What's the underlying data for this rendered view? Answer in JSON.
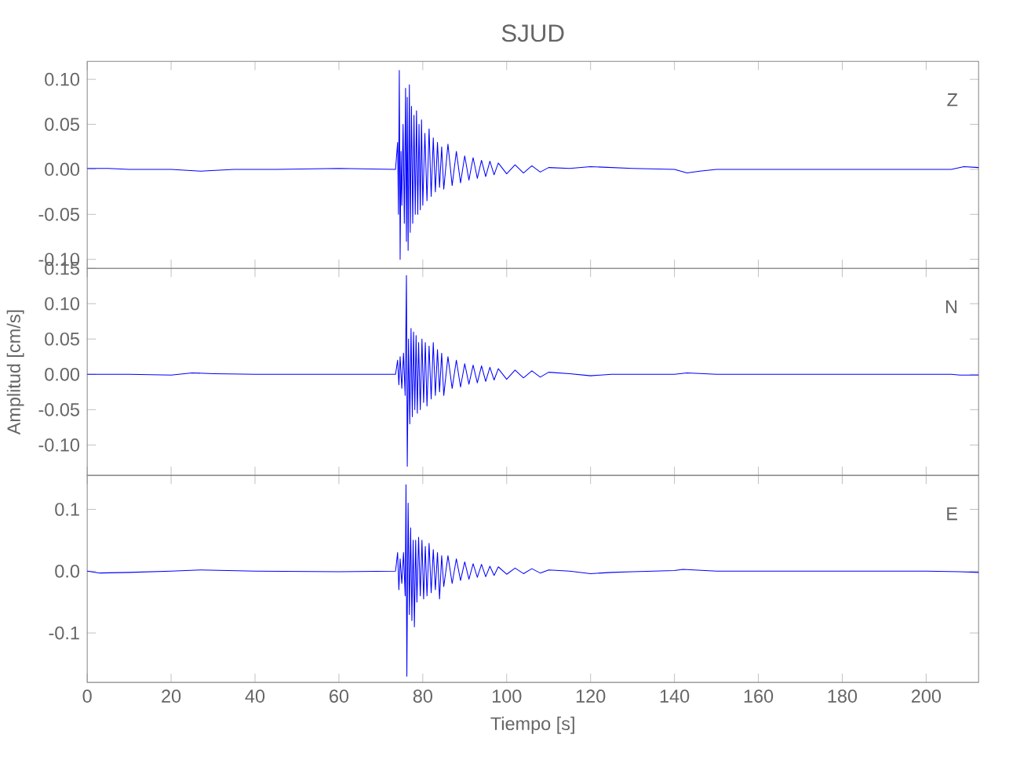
{
  "chart_data": [
    {
      "type": "line",
      "title": "SJUD",
      "annotations": [
        "Z"
      ],
      "color": "#0000ff",
      "tick_labels": "y",
      "xlim": [
        0,
        212.5
      ],
      "ylim": [
        -0.11,
        0.12
      ],
      "xticks": [
        0,
        20,
        40,
        60,
        80,
        100,
        120,
        140,
        160,
        180,
        200
      ],
      "yticks": [
        {
          "value": -0.1,
          "label": "-0.10"
        },
        {
          "value": -0.05,
          "label": "-0.05"
        },
        {
          "value": 0,
          "label": "0.00"
        },
        {
          "value": 0.05,
          "label": "0.05"
        },
        {
          "value": 0.1,
          "label": "0.10"
        }
      ],
      "x": [
        0,
        5,
        10,
        20,
        27,
        35,
        45,
        60,
        73.5,
        74,
        74.2,
        74.4,
        74.6,
        74.8,
        75,
        75.3,
        75.6,
        75.9,
        76.1,
        76.3,
        76.5,
        76.8,
        77,
        77.3,
        77.6,
        77.9,
        78.2,
        78.5,
        78.8,
        79.1,
        79.4,
        79.7,
        80,
        80.5,
        81,
        81.5,
        82,
        82.5,
        83,
        83.5,
        84,
        84.5,
        85,
        86,
        87,
        88,
        89,
        90,
        91,
        92,
        93,
        94,
        95,
        96,
        97,
        98,
        100,
        102,
        104,
        106,
        108,
        110,
        115,
        120,
        125,
        130,
        140,
        143,
        146,
        150,
        160,
        180,
        200,
        206,
        209,
        212.5
      ],
      "values": [
        0.001,
        0.001,
        0.0,
        0.0,
        -0.002,
        0.0,
        0.0,
        0.001,
        0.0,
        0.03,
        -0.05,
        0.11,
        -0.1,
        0.02,
        -0.04,
        0.05,
        -0.06,
        0.09,
        -0.08,
        0.08,
        -0.09,
        0.094,
        -0.07,
        0.07,
        -0.06,
        0.06,
        -0.05,
        0.065,
        -0.05,
        0.05,
        -0.045,
        0.055,
        -0.04,
        0.04,
        -0.035,
        0.045,
        -0.03,
        0.035,
        -0.025,
        0.03,
        -0.02,
        0.025,
        -0.022,
        0.028,
        -0.018,
        0.02,
        -0.015,
        0.015,
        -0.012,
        0.013,
        -0.01,
        0.01,
        -0.008,
        0.009,
        -0.006,
        0.007,
        -0.005,
        0.005,
        -0.004,
        0.004,
        -0.003,
        0.002,
        0.001,
        0.003,
        0.002,
        0.001,
        0.0,
        -0.004,
        -0.002,
        0.0,
        0.0,
        0.0,
        0.0,
        0.0,
        0.003,
        0.002
      ]
    },
    {
      "type": "line",
      "ylabel": "Amplitud  [cm/s]",
      "annotations": [
        "N"
      ],
      "color": "#0000ff",
      "tick_labels": "y",
      "xlim": [
        0,
        212.5
      ],
      "ylim": [
        -0.143,
        0.15
      ],
      "xticks": [
        0,
        20,
        40,
        60,
        80,
        100,
        120,
        140,
        160,
        180,
        200
      ],
      "yticks": [
        {
          "value": -0.1,
          "label": "-0.10"
        },
        {
          "value": -0.05,
          "label": "-0.05"
        },
        {
          "value": 0,
          "label": "0.00"
        },
        {
          "value": 0.05,
          "label": "0.05"
        },
        {
          "value": 0.1,
          "label": "0.10"
        },
        {
          "value": 0.15,
          "label": "0.15"
        }
      ],
      "x": [
        0,
        10,
        20,
        25,
        30,
        40,
        60,
        73.5,
        74,
        74.3,
        74.6,
        75,
        75.4,
        75.8,
        76.1,
        76.3,
        76.6,
        76.9,
        77.2,
        77.5,
        77.8,
        78.1,
        78.4,
        78.7,
        79,
        79.4,
        79.8,
        80.2,
        80.6,
        81,
        81.5,
        82,
        82.5,
        83,
        83.5,
        84,
        84.5,
        85,
        86,
        87,
        88,
        89,
        90,
        91,
        92,
        93,
        94,
        95,
        96,
        97,
        98,
        100,
        102,
        104,
        106,
        108,
        110,
        115,
        120,
        125,
        130,
        140,
        143,
        150,
        170,
        200,
        206,
        208,
        212.5
      ],
      "values": [
        0.0,
        0.0,
        -0.001,
        0.002,
        0.001,
        0.0,
        0.0,
        0.0,
        0.02,
        -0.015,
        0.025,
        -0.02,
        0.03,
        -0.03,
        0.14,
        -0.13,
        0.05,
        -0.07,
        0.065,
        -0.06,
        0.06,
        -0.05,
        0.055,
        -0.055,
        0.045,
        -0.05,
        0.05,
        -0.04,
        0.045,
        -0.045,
        0.04,
        -0.035,
        0.045,
        -0.03,
        0.035,
        -0.025,
        0.03,
        -0.03,
        0.025,
        -0.02,
        0.02,
        -0.018,
        0.015,
        -0.014,
        0.013,
        -0.012,
        0.012,
        -0.01,
        0.01,
        -0.008,
        0.008,
        -0.007,
        0.006,
        -0.005,
        0.005,
        -0.004,
        0.003,
        0.001,
        -0.002,
        0.0,
        0.0,
        0.0,
        0.002,
        0.0,
        0.0,
        0.0,
        0.0,
        -0.001,
        -0.001
      ]
    },
    {
      "type": "line",
      "xlabel": "Tiempo  [s]",
      "annotations": [
        "E"
      ],
      "color": "#0000ff",
      "xlim": [
        0,
        212.5
      ],
      "ylim": [
        -0.18,
        0.155
      ],
      "xticks": [
        0,
        20,
        40,
        60,
        80,
        100,
        120,
        140,
        160,
        180,
        200
      ],
      "yticks": [
        {
          "value": -0.1,
          "label": "-0.1"
        },
        {
          "value": 0,
          "label": "0.0"
        },
        {
          "value": 0.1,
          "label": "0.1"
        }
      ],
      "x": [
        0,
        3,
        10,
        20,
        27,
        40,
        60,
        73.5,
        74,
        74.3,
        74.6,
        75,
        75.4,
        75.8,
        76,
        76.2,
        76.5,
        76.8,
        77.1,
        77.4,
        77.7,
        78,
        78.3,
        78.6,
        79,
        79.4,
        79.8,
        80.2,
        80.6,
        81,
        81.5,
        82,
        82.5,
        83,
        83.5,
        84,
        84.5,
        85,
        86,
        87,
        88,
        89,
        90,
        91,
        92,
        93,
        94,
        95,
        96,
        97,
        98,
        100,
        102,
        104,
        106,
        108,
        110,
        115,
        120,
        125,
        130,
        140,
        142,
        150,
        180,
        200,
        208,
        212.5
      ],
      "values": [
        0.0,
        -0.003,
        -0.002,
        0.0,
        0.002,
        0.0,
        -0.001,
        0.0,
        0.03,
        -0.03,
        0.02,
        -0.02,
        0.03,
        -0.04,
        0.14,
        -0.17,
        0.11,
        -0.07,
        0.07,
        -0.08,
        0.05,
        -0.09,
        0.05,
        -0.05,
        0.055,
        -0.04,
        0.05,
        -0.045,
        0.04,
        -0.04,
        0.045,
        -0.035,
        0.035,
        -0.03,
        0.03,
        -0.045,
        0.025,
        -0.025,
        0.025,
        -0.02,
        0.02,
        -0.015,
        0.015,
        -0.013,
        0.012,
        -0.01,
        0.011,
        -0.009,
        0.008,
        -0.007,
        0.007,
        -0.005,
        0.005,
        -0.004,
        0.004,
        -0.003,
        0.002,
        0.0,
        -0.004,
        -0.002,
        -0.001,
        0.001,
        0.003,
        0.0,
        0.0,
        0.0,
        -0.001,
        -0.002
      ]
    }
  ]
}
